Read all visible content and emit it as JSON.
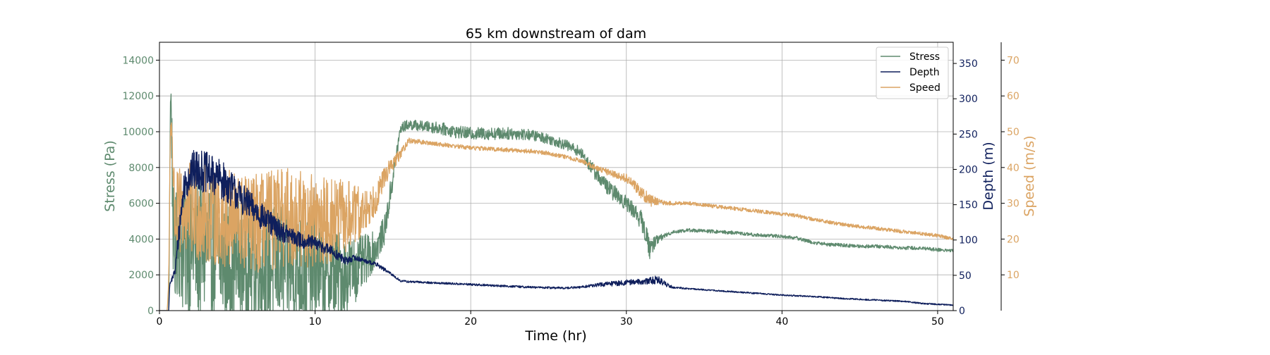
{
  "chart_data": {
    "type": "line",
    "title": "65 km downstream of dam",
    "xlabel": "Time (hr)",
    "xlim": [
      0,
      51
    ],
    "x_ticks": [
      0,
      10,
      20,
      30,
      40,
      50
    ],
    "grid": true,
    "legend_position": "top-right",
    "axes": {
      "stress": {
        "label": "Stress (Pa)",
        "ylim": [
          0,
          15000
        ],
        "ticks": [
          0,
          2000,
          4000,
          6000,
          8000,
          10000,
          12000,
          14000
        ],
        "color": "#5e8a6e"
      },
      "depth": {
        "label": "Depth (m)",
        "ylim": [
          0,
          380
        ],
        "ticks": [
          0,
          50,
          100,
          150,
          200,
          250,
          300,
          350
        ],
        "color": "#0f1f5c"
      },
      "speed": {
        "label": "Speed (m/s)",
        "ylim": [
          0,
          75
        ],
        "ticks": [
          10,
          20,
          30,
          40,
          50,
          60,
          70
        ],
        "color": "#dba463"
      }
    },
    "series": [
      {
        "name": "Stress",
        "axis": "stress",
        "color": "#5e8a6e",
        "x": [
          0.0,
          0.6,
          0.7,
          0.75,
          0.8,
          0.9,
          1.0,
          1.2,
          1.5,
          2.0,
          2.5,
          3.0,
          3.5,
          4.0,
          5.0,
          6.0,
          7.0,
          8.0,
          9.0,
          10.0,
          11.0,
          12.0,
          13.0,
          14.0,
          14.5,
          15.0,
          15.5,
          16.0,
          17.0,
          18.0,
          19.0,
          20.0,
          21.0,
          22.0,
          23.0,
          24.0,
          25.0,
          26.0,
          27.0,
          28.0,
          28.5,
          29.0,
          29.5,
          30.0,
          30.5,
          31.0,
          31.5,
          32.0,
          32.5,
          33.0,
          34.0,
          35.0,
          36.0,
          37.0,
          38.0,
          39.0,
          40.0,
          41.0,
          42.0,
          43.0,
          44.0,
          45.0,
          46.0,
          47.0,
          48.0,
          49.0,
          50.0,
          51.0
        ],
        "y": [
          0,
          0,
          11500,
          12000,
          9000,
          4000,
          3000,
          4500,
          3500,
          3800,
          3400,
          3600,
          3200,
          3000,
          2800,
          2700,
          2600,
          2500,
          2300,
          2200,
          2100,
          2000,
          2600,
          3600,
          4600,
          7500,
          10200,
          10400,
          10300,
          10200,
          10000,
          9900,
          9900,
          9900,
          9900,
          9800,
          9600,
          9300,
          8900,
          7700,
          7200,
          6700,
          6400,
          6000,
          5600,
          5000,
          3500,
          4000,
          4200,
          4400,
          4500,
          4450,
          4400,
          4350,
          4250,
          4200,
          4150,
          4050,
          3800,
          3700,
          3650,
          3600,
          3600,
          3550,
          3500,
          3500,
          3400,
          3350
        ],
        "noise": [
          0,
          0,
          400,
          500,
          2500,
          3000,
          3000,
          3500,
          3800,
          4000,
          4000,
          4000,
          3800,
          3700,
          3600,
          3500,
          3500,
          3400,
          3200,
          3000,
          2700,
          2300,
          1600,
          900,
          800,
          700,
          300,
          300,
          300,
          350,
          350,
          350,
          350,
          350,
          350,
          300,
          300,
          300,
          300,
          400,
          400,
          450,
          450,
          450,
          450,
          550,
          600,
          250,
          120,
          100,
          100,
          100,
          100,
          100,
          100,
          100,
          100,
          100,
          100,
          100,
          100,
          100,
          100,
          100,
          100,
          100,
          100,
          100
        ]
      },
      {
        "name": "Depth",
        "axis": "depth",
        "color": "#0f1f5c",
        "x": [
          0.0,
          0.6,
          0.65,
          0.8,
          1.0,
          1.3,
          1.6,
          2.0,
          2.5,
          3.0,
          3.5,
          4.0,
          4.5,
          5.0,
          5.5,
          6.0,
          7.0,
          8.0,
          9.0,
          10.0,
          11.0,
          12.0,
          12.5,
          13.0,
          14.0,
          15.0,
          15.5,
          16.0,
          17.0,
          18.0,
          20.0,
          22.0,
          24.0,
          26.0,
          27.0,
          28.0,
          29.0,
          30.0,
          31.0,
          31.5,
          32.0,
          32.5,
          33.0,
          34.0,
          36.0,
          38.0,
          40.0,
          42.0,
          44.0,
          46.0,
          48.0,
          49.0,
          50.0,
          51.0
        ],
        "y": [
          0,
          0,
          35,
          45,
          55,
          120,
          180,
          195,
          200,
          195,
          190,
          185,
          175,
          165,
          155,
          145,
          125,
          110,
          100,
          95,
          85,
          70,
          75,
          72,
          65,
          50,
          42,
          41,
          40,
          39,
          37,
          35,
          33,
          32,
          33,
          36,
          38,
          40,
          41,
          42,
          44,
          38,
          33,
          31,
          28,
          25,
          22,
          20,
          17,
          15,
          13,
          10,
          9,
          8
        ],
        "noise": [
          0,
          0,
          3,
          4,
          6,
          18,
          25,
          30,
          30,
          30,
          28,
          28,
          26,
          24,
          22,
          20,
          18,
          14,
          12,
          10,
          8,
          6,
          4,
          3,
          3,
          2,
          1.5,
          1.5,
          1.5,
          1.5,
          1.5,
          1.5,
          1.5,
          1.5,
          1.5,
          2.5,
          3.5,
          4,
          4,
          5,
          6,
          4,
          1.5,
          1,
          1,
          1,
          1,
          1,
          1,
          1,
          1,
          1,
          1,
          1
        ]
      },
      {
        "name": "Speed",
        "axis": "speed",
        "color": "#dba463",
        "x": [
          0.0,
          0.5,
          0.6,
          0.7,
          0.8,
          0.9,
          1.0,
          1.5,
          2.0,
          3.0,
          4.0,
          5.0,
          6.0,
          7.0,
          8.0,
          9.0,
          10.0,
          11.0,
          12.0,
          13.0,
          14.0,
          14.5,
          15.0,
          15.5,
          16.0,
          17.0,
          18.0,
          20.0,
          22.0,
          24.0,
          25.0,
          26.0,
          27.0,
          28.0,
          29.0,
          30.0,
          31.0,
          31.5,
          32.0,
          32.5,
          33.0,
          34.0,
          36.0,
          38.0,
          40.0,
          41.0,
          42.0,
          44.0,
          46.0,
          48.0,
          50.0,
          51.0
        ],
        "y": [
          0,
          0,
          10,
          50,
          52,
          35,
          26,
          28,
          28,
          27,
          26,
          25,
          24,
          25,
          26,
          26,
          25,
          25,
          26,
          27,
          32,
          38,
          41,
          44,
          47.5,
          47,
          46.5,
          45.5,
          45,
          44.5,
          44,
          43,
          42,
          40,
          38.5,
          37,
          33,
          31,
          30.5,
          30,
          30,
          30,
          29,
          28,
          27,
          26.5,
          25.5,
          24,
          23,
          22,
          21,
          20
        ],
        "noise": [
          0,
          0,
          2,
          3,
          4,
          10,
          12,
          13,
          14,
          14,
          14,
          14,
          14,
          14,
          14,
          14,
          13,
          12,
          11,
          7,
          4,
          3,
          2,
          1.5,
          0.8,
          0.6,
          0.6,
          0.6,
          0.6,
          0.6,
          0.6,
          0.6,
          0.6,
          0.8,
          1,
          1.2,
          1.8,
          2,
          1,
          0.6,
          0.5,
          0.5,
          0.5,
          0.5,
          0.5,
          0.5,
          0.5,
          0.5,
          0.5,
          0.5,
          0.5,
          0.5
        ]
      }
    ]
  }
}
